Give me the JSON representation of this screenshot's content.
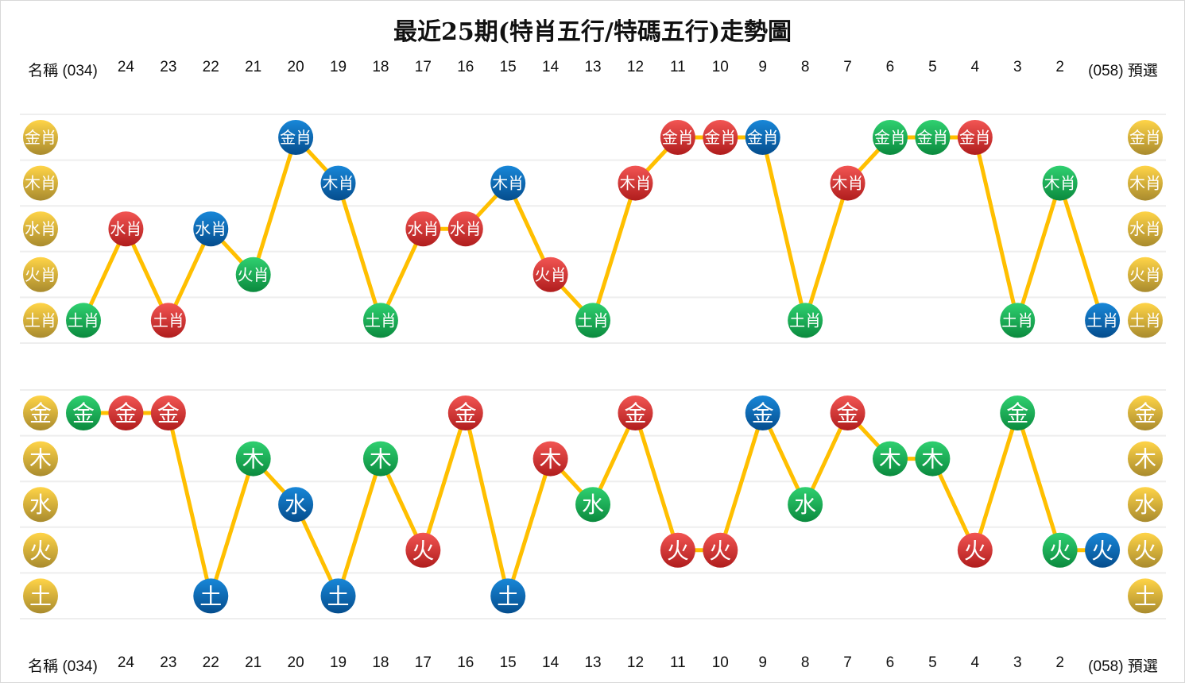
{
  "title": "最近25期(特肖五行/特碼五行)走勢圖",
  "header": {
    "name_label": "名稱",
    "columns": [
      "(034)",
      "24",
      "23",
      "22",
      "21",
      "20",
      "19",
      "18",
      "17",
      "16",
      "15",
      "14",
      "13",
      "12",
      "11",
      "10",
      "9",
      "8",
      "7",
      "6",
      "5",
      "4",
      "3",
      "2",
      "(058)"
    ],
    "preselect_label": "預選"
  },
  "colors": {
    "red": "#d8302e",
    "green": "#15b257",
    "blue": "#0a68b8",
    "gold": "#e6b42c",
    "line": "#ffbf00",
    "grid": "#eeeeee"
  },
  "chart_data": [
    {
      "type": "line",
      "name": "特肖五行",
      "categories": [
        "(034)",
        "24",
        "23",
        "22",
        "21",
        "20",
        "19",
        "18",
        "17",
        "16",
        "15",
        "14",
        "13",
        "12",
        "11",
        "10",
        "9",
        "8",
        "7",
        "6",
        "5",
        "4",
        "3",
        "2",
        "(058)"
      ],
      "row_labels": [
        "金肖",
        "木肖",
        "水肖",
        "火肖",
        "土肖"
      ],
      "values": [
        "土肖",
        "水肖",
        "土肖",
        "水肖",
        "火肖",
        "金肖",
        "木肖",
        "土肖",
        "水肖",
        "水肖",
        "木肖",
        "火肖",
        "土肖",
        "木肖",
        "金肖",
        "金肖",
        "金肖",
        "土肖",
        "木肖",
        "金肖",
        "金肖",
        "金肖",
        "土肖",
        "木肖",
        "土肖"
      ],
      "ball_colors": [
        "green",
        "red",
        "red",
        "blue",
        "green",
        "blue",
        "blue",
        "green",
        "red",
        "red",
        "blue",
        "red",
        "green",
        "red",
        "red",
        "red",
        "blue",
        "green",
        "red",
        "green",
        "green",
        "red",
        "green",
        "green",
        "blue"
      ]
    },
    {
      "type": "line",
      "name": "特碼五行",
      "categories": [
        "(034)",
        "24",
        "23",
        "22",
        "21",
        "20",
        "19",
        "18",
        "17",
        "16",
        "15",
        "14",
        "13",
        "12",
        "11",
        "10",
        "9",
        "8",
        "7",
        "6",
        "5",
        "4",
        "3",
        "2",
        "(058)"
      ],
      "row_labels": [
        "金",
        "木",
        "水",
        "火",
        "土"
      ],
      "values": [
        "金",
        "金",
        "金",
        "土",
        "木",
        "水",
        "土",
        "木",
        "火",
        "金",
        "土",
        "木",
        "水",
        "金",
        "火",
        "火",
        "金",
        "水",
        "金",
        "木",
        "木",
        "火",
        "金",
        "火",
        "火"
      ],
      "ball_colors": [
        "green",
        "red",
        "red",
        "blue",
        "green",
        "blue",
        "blue",
        "green",
        "red",
        "red",
        "blue",
        "red",
        "green",
        "red",
        "red",
        "red",
        "blue",
        "green",
        "red",
        "green",
        "green",
        "red",
        "green",
        "green",
        "blue"
      ]
    }
  ]
}
